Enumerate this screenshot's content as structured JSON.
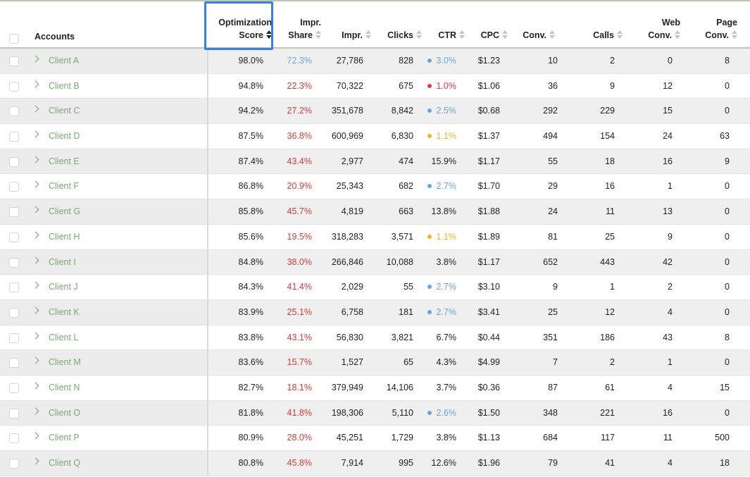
{
  "columns": [
    {
      "key": "accounts",
      "label": "Accounts"
    },
    {
      "key": "opt",
      "label": "Optimization\nScore"
    },
    {
      "key": "share",
      "label": "Impr.\nShare"
    },
    {
      "key": "impr",
      "label": "Impr."
    },
    {
      "key": "clicks",
      "label": "Clicks"
    },
    {
      "key": "ctr",
      "label": "CTR"
    },
    {
      "key": "cpc",
      "label": "CPC"
    },
    {
      "key": "conv",
      "label": "Conv."
    },
    {
      "key": "calls",
      "label": "Calls"
    },
    {
      "key": "web",
      "label": "Web\nConv."
    },
    {
      "key": "page",
      "label": "Page\nConv."
    }
  ],
  "sorted_column": "opt",
  "colors": {
    "share_red": "#dd3b3b",
    "share_blue": "#6aa5e0",
    "dot_blue": "#6aa5e0",
    "dot_red": "#e03b3b",
    "dot_yellow": "#f0b429",
    "account_green": "#7da877"
  },
  "rows": [
    {
      "account": "Client A",
      "opt": "98.0%",
      "share": "72.3%",
      "share_color": "blue",
      "impr": "27,786",
      "clicks": "828",
      "ctr": "3.0%",
      "ctr_dot": "blue",
      "cpc": "$1.23",
      "conv": "10",
      "calls": "2",
      "web": "0",
      "page": "8"
    },
    {
      "account": "Client B",
      "opt": "94.8%",
      "share": "22.3%",
      "share_color": "red",
      "impr": "70,322",
      "clicks": "675",
      "ctr": "1.0%",
      "ctr_dot": "red",
      "cpc": "$1.06",
      "conv": "36",
      "calls": "9",
      "web": "12",
      "page": "0"
    },
    {
      "account": "Client C",
      "opt": "94.2%",
      "share": "27.2%",
      "share_color": "red",
      "impr": "351,678",
      "clicks": "8,842",
      "ctr": "2.5%",
      "ctr_dot": "blue",
      "cpc": "$0.68",
      "conv": "292",
      "calls": "229",
      "web": "15",
      "page": "0"
    },
    {
      "account": "Client D",
      "opt": "87.5%",
      "share": "36.8%",
      "share_color": "red",
      "impr": "600,969",
      "clicks": "6,830",
      "ctr": "1.1%",
      "ctr_dot": "yellow",
      "cpc": "$1.37",
      "conv": "494",
      "calls": "154",
      "web": "24",
      "page": "63"
    },
    {
      "account": "Client E",
      "opt": "87.4%",
      "share": "43.4%",
      "share_color": "red",
      "impr": "2,977",
      "clicks": "474",
      "ctr": "15.9%",
      "ctr_dot": "",
      "cpc": "$1.17",
      "conv": "55",
      "calls": "18",
      "web": "16",
      "page": "9"
    },
    {
      "account": "Client F",
      "opt": "86.8%",
      "share": "20.9%",
      "share_color": "red",
      "impr": "25,343",
      "clicks": "682",
      "ctr": "2.7%",
      "ctr_dot": "blue",
      "cpc": "$1.70",
      "conv": "29",
      "calls": "16",
      "web": "1",
      "page": "0"
    },
    {
      "account": "Client G",
      "opt": "85.8%",
      "share": "45.7%",
      "share_color": "red",
      "impr": "4,819",
      "clicks": "663",
      "ctr": "13.8%",
      "ctr_dot": "",
      "cpc": "$1.88",
      "conv": "24",
      "calls": "11",
      "web": "13",
      "page": "0"
    },
    {
      "account": "Client H",
      "opt": "85.6%",
      "share": "19.5%",
      "share_color": "red",
      "impr": "318,283",
      "clicks": "3,571",
      "ctr": "1.1%",
      "ctr_dot": "yellow",
      "cpc": "$1.89",
      "conv": "81",
      "calls": "25",
      "web": "9",
      "page": "0"
    },
    {
      "account": "Client I",
      "opt": "84.8%",
      "share": "38.0%",
      "share_color": "red",
      "impr": "266,846",
      "clicks": "10,088",
      "ctr": "3.8%",
      "ctr_dot": "",
      "cpc": "$1.17",
      "conv": "652",
      "calls": "443",
      "web": "42",
      "page": "0"
    },
    {
      "account": "Client J",
      "opt": "84.3%",
      "share": "41.4%",
      "share_color": "red",
      "impr": "2,029",
      "clicks": "55",
      "ctr": "2.7%",
      "ctr_dot": "blue",
      "cpc": "$3.10",
      "conv": "9",
      "calls": "1",
      "web": "2",
      "page": "0"
    },
    {
      "account": "Client K",
      "opt": "83.9%",
      "share": "25.1%",
      "share_color": "red",
      "impr": "6,758",
      "clicks": "181",
      "ctr": "2.7%",
      "ctr_dot": "blue",
      "cpc": "$3.41",
      "conv": "25",
      "calls": "12",
      "web": "4",
      "page": "0"
    },
    {
      "account": "Client L",
      "opt": "83.8%",
      "share": "43.1%",
      "share_color": "red",
      "impr": "56,830",
      "clicks": "3,821",
      "ctr": "6.7%",
      "ctr_dot": "",
      "cpc": "$0.44",
      "conv": "351",
      "calls": "186",
      "web": "43",
      "page": "8"
    },
    {
      "account": "Client M",
      "opt": "83.6%",
      "share": "15.7%",
      "share_color": "red",
      "impr": "1,527",
      "clicks": "65",
      "ctr": "4.3%",
      "ctr_dot": "",
      "cpc": "$4.99",
      "conv": "7",
      "calls": "2",
      "web": "1",
      "page": "0"
    },
    {
      "account": "Client N",
      "opt": "82.7%",
      "share": "18.1%",
      "share_color": "red",
      "impr": "379,949",
      "clicks": "14,106",
      "ctr": "3.7%",
      "ctr_dot": "",
      "cpc": "$0.36",
      "conv": "87",
      "calls": "61",
      "web": "4",
      "page": "15"
    },
    {
      "account": "Client O",
      "opt": "81.8%",
      "share": "41.8%",
      "share_color": "red",
      "impr": "198,306",
      "clicks": "5,110",
      "ctr": "2.6%",
      "ctr_dot": "blue",
      "cpc": "$1.50",
      "conv": "348",
      "calls": "221",
      "web": "16",
      "page": "0"
    },
    {
      "account": "Client P",
      "opt": "80.9%",
      "share": "28.0%",
      "share_color": "red",
      "impr": "45,251",
      "clicks": "1,729",
      "ctr": "3.8%",
      "ctr_dot": "",
      "cpc": "$1.13",
      "conv": "684",
      "calls": "117",
      "web": "11",
      "page": "500"
    },
    {
      "account": "Client Q",
      "opt": "80.8%",
      "share": "45.8%",
      "share_color": "red",
      "impr": "7,914",
      "clicks": "995",
      "ctr": "12.6%",
      "ctr_dot": "",
      "cpc": "$1.96",
      "conv": "79",
      "calls": "41",
      "web": "4",
      "page": "18"
    }
  ]
}
